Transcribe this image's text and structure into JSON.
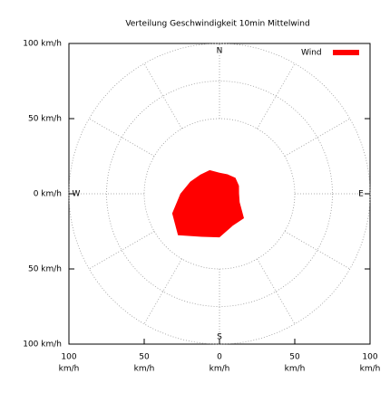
{
  "chart_data": {
    "type": "polar-area",
    "title": "Verteilung Geschwindigkeit  10min Mittelwind",
    "directions": [
      0,
      22.5,
      45,
      67.5,
      90,
      112.5,
      135,
      157.5,
      180,
      202.5,
      225,
      247.5,
      270,
      292.5,
      315,
      337.5
    ],
    "series": [
      {
        "name": "Wind",
        "color": "#ff0000",
        "values": [
          14,
          14,
          15,
          14,
          13,
          14.5,
          23,
          23,
          29,
          31,
          39,
          34,
          26,
          21,
          18,
          17
        ]
      }
    ],
    "compass": [
      "N",
      "E",
      "S",
      "W"
    ],
    "xlim": [
      -100,
      100
    ],
    "ylim": [
      -100,
      100
    ],
    "xticks": [
      {
        "value": -100,
        "label": "100"
      },
      {
        "value": -50,
        "label": "50"
      },
      0,
      50,
      100
    ],
    "x_unit": "km/h",
    "yticks": [
      {
        "value": 100,
        "label": "100 km/h"
      },
      {
        "value": 50,
        "label": "50 km/h"
      },
      {
        "value": 0,
        "label": "0 km/h"
      },
      {
        "value": -50,
        "label": "50 km/h"
      },
      {
        "value": -100,
        "label": "100 km/h"
      }
    ],
    "rgrid": [
      50,
      75,
      100
    ],
    "legend": "top-right"
  }
}
